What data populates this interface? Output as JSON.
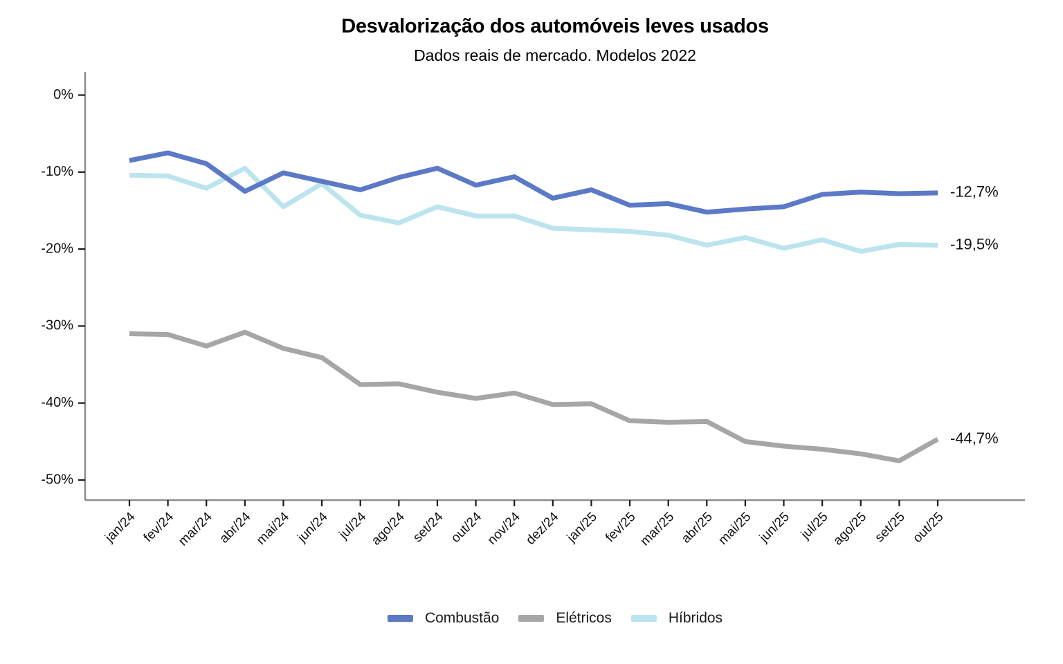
{
  "chart_data": {
    "type": "line",
    "title": "Desvalorização dos automóveis leves usados",
    "subtitle": "Dados reais de mercado. Modelos 2022",
    "x_categories": [
      "jan/24",
      "fev/24",
      "mar/24",
      "abr/24",
      "mai/24",
      "jun/24",
      "jul/24",
      "ago/24",
      "set/24",
      "out/24",
      "nov/24",
      "dez/24",
      "jan/25",
      "fev/25",
      "mar/25",
      "abr/25",
      "mai/25",
      "jun/25",
      "jul/25",
      "ago/25",
      "set/25",
      "out/25"
    ],
    "y_axis": {
      "tick_values": [
        0,
        -10,
        -20,
        -30,
        -40,
        -50
      ],
      "tick_labels": [
        "0%",
        "-10%",
        "-20%",
        "-30%",
        "-40%",
        "-50%"
      ],
      "range_shown": [
        -52.5,
        3
      ]
    },
    "grid": false,
    "legend_position": "bottom",
    "axis_color": "#8C8C8C",
    "tick_color": "#1a1a1a",
    "text_color": "#111111",
    "series": [
      {
        "name": "Combustão",
        "color": "#5B79C7",
        "end_label": "-12,7%",
        "values": [
          -8.5,
          -7.5,
          -8.9,
          -12.5,
          -10.1,
          -11.2,
          -12.3,
          -10.7,
          -9.5,
          -11.7,
          -10.6,
          -13.4,
          -12.3,
          -14.3,
          -14.1,
          -15.2,
          -14.8,
          -14.5,
          -12.9,
          -12.6,
          -12.8,
          -12.7
        ]
      },
      {
        "name": "Elétricos",
        "color": "#A6A6A6",
        "end_label": "-44,7%",
        "values": [
          -31.0,
          -31.1,
          -32.6,
          -30.8,
          -32.9,
          -34.1,
          -37.6,
          -37.5,
          -38.6,
          -39.4,
          -38.7,
          -40.2,
          -40.1,
          -42.3,
          -42.5,
          -42.4,
          -45.0,
          -45.6,
          -46.0,
          -46.6,
          -47.5,
          -44.7
        ]
      },
      {
        "name": "Híbridos",
        "color": "#BCE4EE",
        "end_label": "-19,5%",
        "values": [
          -10.4,
          -10.5,
          -12.1,
          -9.5,
          -14.5,
          -11.5,
          -15.6,
          -16.6,
          -14.5,
          -15.7,
          -15.7,
          -17.3,
          -17.5,
          -17.7,
          -18.2,
          -19.5,
          -18.5,
          -19.9,
          -18.8,
          -20.3,
          -19.4,
          -19.5
        ]
      }
    ]
  }
}
